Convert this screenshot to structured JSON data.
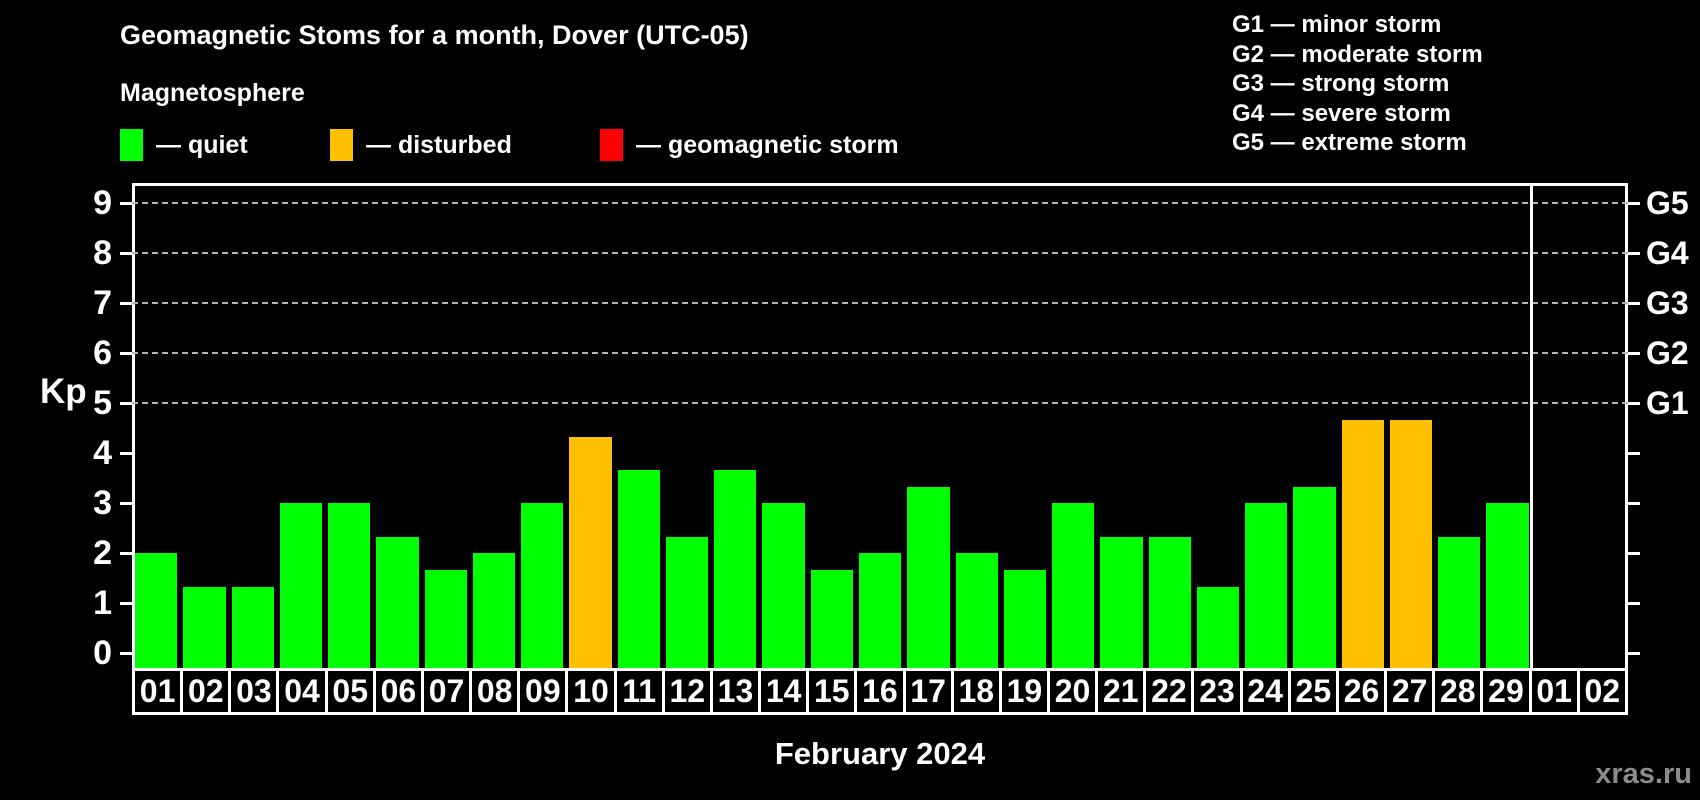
{
  "header": {
    "title": "Geomagnetic Stoms for a month, Dover (UTC-05)",
    "subtitle": "Magnetosphere",
    "legend": [
      {
        "key": "quiet",
        "label": "— quiet",
        "color": "#00ff00"
      },
      {
        "key": "disturbed",
        "label": "— disturbed",
        "color": "#ffc000"
      },
      {
        "key": "storm",
        "label": "— geomagnetic storm",
        "color": "#ff0000"
      }
    ],
    "g_scale": [
      "G1 — minor storm",
      "G2 — moderate storm",
      "G3 — strong storm",
      "G4 — severe storm",
      "G5 — extreme storm"
    ]
  },
  "chart_data": {
    "type": "bar",
    "title": "Geomagnetic Stoms for a month, Dover (UTC-05)",
    "xlabel": "February 2024",
    "ylabel": "Kp",
    "ylim": [
      0,
      9.4
    ],
    "yticks": [
      0,
      1,
      2,
      3,
      4,
      5,
      6,
      7,
      8,
      9
    ],
    "gridlines_kp": [
      5,
      6,
      7,
      8,
      9
    ],
    "grid": "dashed, only at G-storm levels 5-9",
    "legend_position": "top-left",
    "right_axis": [
      {
        "kp": 5,
        "label": "G1"
      },
      {
        "kp": 6,
        "label": "G2"
      },
      {
        "kp": 7,
        "label": "G3"
      },
      {
        "kp": 8,
        "label": "G4"
      },
      {
        "kp": 9,
        "label": "G5"
      }
    ],
    "categories": [
      "01",
      "02",
      "03",
      "04",
      "05",
      "06",
      "07",
      "08",
      "09",
      "10",
      "11",
      "12",
      "13",
      "14",
      "15",
      "16",
      "17",
      "18",
      "19",
      "20",
      "21",
      "22",
      "23",
      "24",
      "25",
      "26",
      "27",
      "28",
      "29",
      "01",
      "02"
    ],
    "values": [
      2.0,
      1.33,
      1.33,
      3.0,
      3.0,
      2.33,
      1.67,
      2.0,
      3.0,
      4.33,
      3.67,
      2.33,
      3.67,
      3.0,
      1.67,
      2.0,
      3.33,
      2.0,
      1.67,
      3.0,
      2.33,
      2.33,
      1.33,
      3.0,
      3.33,
      4.67,
      4.67,
      2.33,
      3.0,
      null,
      null
    ],
    "statuses": [
      "quiet",
      "quiet",
      "quiet",
      "quiet",
      "quiet",
      "quiet",
      "quiet",
      "quiet",
      "quiet",
      "disturbed",
      "quiet",
      "quiet",
      "quiet",
      "quiet",
      "quiet",
      "quiet",
      "quiet",
      "quiet",
      "quiet",
      "quiet",
      "quiet",
      "quiet",
      "quiet",
      "quiet",
      "quiet",
      "disturbed",
      "disturbed",
      "quiet",
      "quiet",
      null,
      null
    ],
    "palette": {
      "quiet": "#00ff00",
      "disturbed": "#ffc000",
      "storm": "#ff0000"
    },
    "feb_slot_count": 29
  },
  "footer": {
    "month_label": "February 2024",
    "watermark": "xras.ru"
  }
}
